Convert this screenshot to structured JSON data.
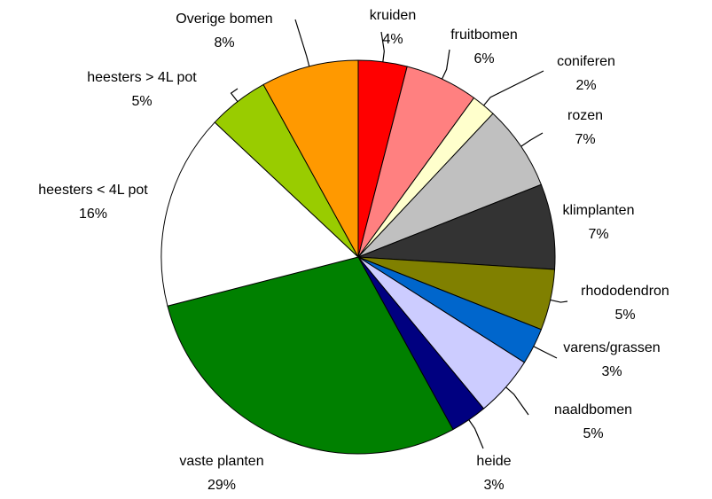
{
  "chart_data": {
    "type": "pie",
    "categories": [
      "kruiden",
      "fruitbomen",
      "coniferen",
      "rozen",
      "klimplanten",
      "rhododendron",
      "varens/grassen",
      "naaldbomen",
      "heide",
      "vaste planten",
      "heesters < 4L pot",
      "heesters > 4L pot",
      "Overige bomen"
    ],
    "values": [
      4,
      6,
      2,
      7,
      7,
      5,
      3,
      5,
      3,
      29,
      16,
      5,
      8
    ],
    "value_labels": [
      "4%",
      "6%",
      "2%",
      "7%",
      "7%",
      "5%",
      "3%",
      "5%",
      "3%",
      "29%",
      "16%",
      "5%",
      "8%"
    ],
    "colors": [
      "#ff0000",
      "#ff8080",
      "#ffffcc",
      "#c0c0c0",
      "#333333",
      "#808000",
      "#0066cc",
      "#ccccff",
      "#000080",
      "#008000",
      "#ffffff",
      "#99cc00",
      "#ff9900"
    ]
  }
}
